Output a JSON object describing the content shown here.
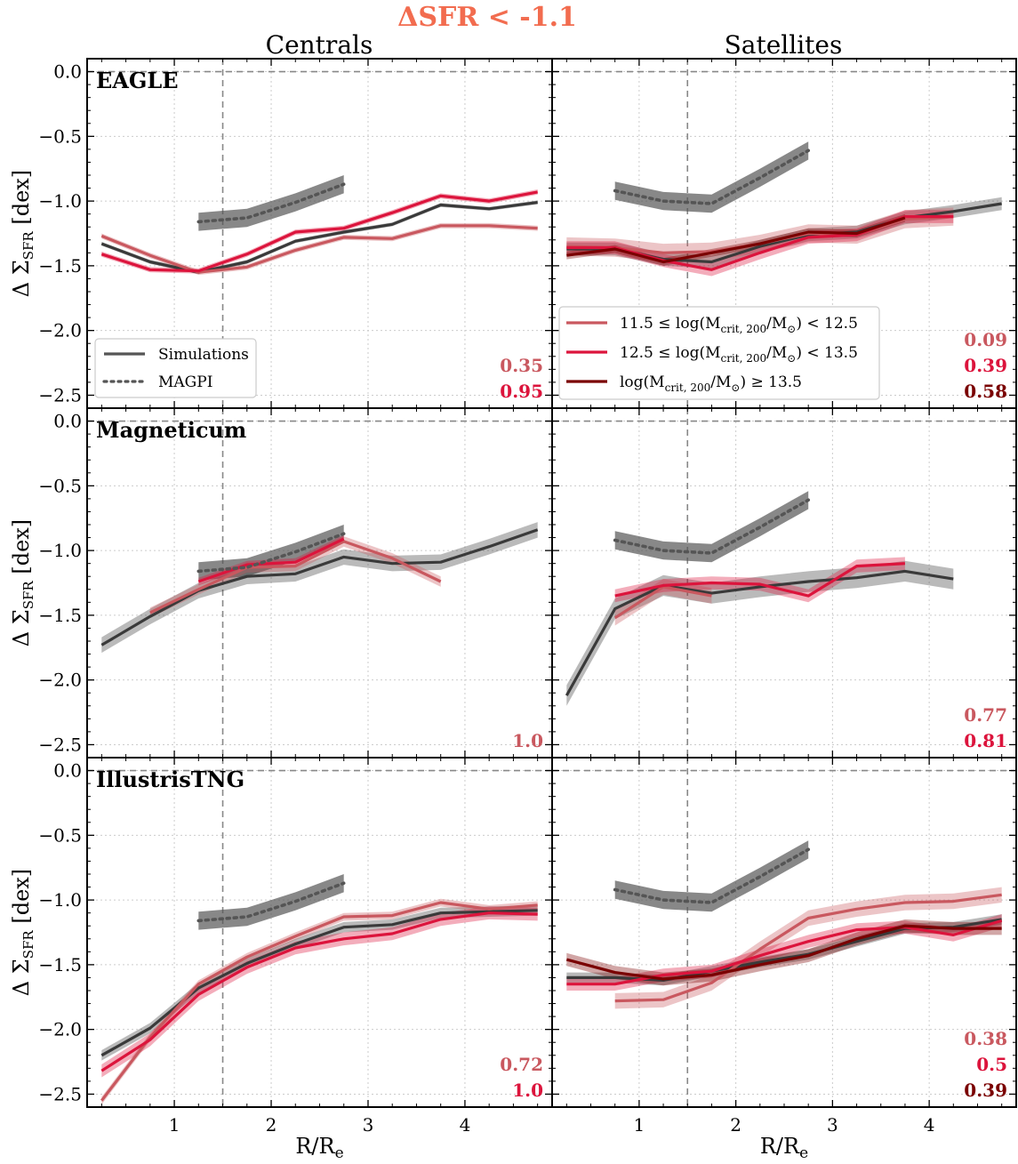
{
  "chart_data": {
    "type": "line",
    "title": "ΔSFR < -1.1",
    "title_color": "#f26c4f",
    "xlabel": "R/Re",
    "ylabel": "Δ ΣSFR [dex]",
    "xlim": [
      0.1,
      4.9
    ],
    "ylim": [
      -2.6,
      0.1
    ],
    "xticks": [
      1,
      2,
      3,
      4
    ],
    "yticks": [
      0.0,
      -0.5,
      -1.0,
      -1.5,
      -2.0,
      -2.5
    ],
    "reference_lines": {
      "vertical_x": 1.5,
      "horizontal_y": 0.0
    },
    "grid": true,
    "column_titles": [
      "Centrals",
      "Satellites"
    ],
    "row_labels": [
      "EAGLE",
      "Magneticum",
      "IllustrisTNG"
    ],
    "colors": {
      "simulations": "#3a3a3a",
      "magpi": "#555555",
      "bin_low": "#c9585f",
      "bin_mid": "#dc143c",
      "bin_high": "#7a0000"
    },
    "legend_styles": {
      "items": [
        {
          "label": "Simulations",
          "style": "solid"
        },
        {
          "label": "MAGPI",
          "style": "dotted"
        }
      ],
      "location": "lower-left of EAGLE centrals panel"
    },
    "legend_bins": {
      "items": [
        {
          "key": "bin_low",
          "label": "11.5 ≤ log(Mcrit, 200/M⊙) < 12.5"
        },
        {
          "key": "bin_mid",
          "label": "12.5 ≤ log(Mcrit, 200/M⊙) < 13.5"
        },
        {
          "key": "bin_high",
          "label": "log(Mcrit, 200/M⊙) ≥ 13.5"
        }
      ],
      "location": "lower-left of EAGLE satellites panel"
    },
    "panels": [
      {
        "row": 0,
        "col": 0,
        "sim_label": "EAGLE",
        "magpi": {
          "x": [
            1.25,
            1.75,
            2.25,
            2.75
          ],
          "y": [
            -1.16,
            -1.13,
            -1.01,
            -0.87
          ],
          "band": 0.07
        },
        "series": [
          {
            "name": "Simulations",
            "color_key": "simulations",
            "x": [
              0.25,
              0.75,
              1.25,
              1.75,
              2.25,
              2.75,
              3.25,
              3.75,
              4.25,
              4.75
            ],
            "y": [
              -1.33,
              -1.47,
              -1.55,
              -1.47,
              -1.31,
              -1.24,
              -1.18,
              -1.03,
              -1.06,
              -1.01
            ],
            "band": 0.015
          },
          {
            "name": "11.5 ≤ log(Mcrit, 200/M⊙) < 12.5",
            "color_key": "bin_low",
            "x": [
              0.25,
              0.75,
              1.25,
              1.75,
              2.25,
              2.75,
              3.25,
              3.75,
              4.25,
              4.75
            ],
            "y": [
              -1.27,
              -1.42,
              -1.55,
              -1.51,
              -1.38,
              -1.28,
              -1.29,
              -1.19,
              -1.19,
              -1.21
            ],
            "band": 0.02
          },
          {
            "name": "12.5 ≤ log(Mcrit, 200/M⊙) < 13.5",
            "color_key": "bin_mid",
            "x": [
              0.25,
              0.75,
              1.25,
              1.75,
              2.25,
              2.75,
              3.25,
              3.75,
              4.25,
              4.75
            ],
            "y": [
              -1.41,
              -1.53,
              -1.54,
              -1.41,
              -1.24,
              -1.21,
              -1.09,
              -0.96,
              -1.0,
              -0.93
            ],
            "band": 0.02
          }
        ],
        "stats": [
          {
            "text": "0.35",
            "color_key": "bin_low"
          },
          {
            "text": "0.95",
            "color_key": "bin_mid"
          }
        ]
      },
      {
        "row": 0,
        "col": 1,
        "sim_label": "",
        "magpi": {
          "x": [
            0.75,
            1.25,
            1.75,
            2.25,
            2.75
          ],
          "y": [
            -0.92,
            -1.0,
            -1.02,
            -0.82,
            -0.61
          ],
          "band": 0.07
        },
        "series": [
          {
            "name": "Simulations",
            "color_key": "simulations",
            "x": [
              0.25,
              0.75,
              1.25,
              1.75,
              2.25,
              2.75,
              3.25,
              3.75,
              4.25,
              4.75
            ],
            "y": [
              -1.37,
              -1.37,
              -1.45,
              -1.47,
              -1.35,
              -1.26,
              -1.24,
              -1.13,
              -1.08,
              -1.02
            ],
            "band": 0.05
          },
          {
            "name": "11.5 ≤ log(Mcrit, 200/M⊙) < 12.5",
            "color_key": "bin_low",
            "x": [
              0.25,
              0.75,
              1.25,
              1.75,
              2.25,
              2.75,
              3.25,
              3.75,
              4.25
            ],
            "y": [
              -1.35,
              -1.36,
              -1.4,
              -1.39,
              -1.33,
              -1.25,
              -1.26,
              -1.14,
              -1.12
            ],
            "band": 0.07
          },
          {
            "name": "12.5 ≤ log(Mcrit, 200/M⊙) < 13.5",
            "color_key": "bin_mid",
            "x": [
              0.25,
              0.75,
              1.25,
              1.75,
              2.25,
              2.75,
              3.25,
              3.75,
              4.25
            ],
            "y": [
              -1.36,
              -1.36,
              -1.46,
              -1.53,
              -1.4,
              -1.28,
              -1.26,
              -1.12,
              -1.12
            ],
            "band": 0.05
          },
          {
            "name": "log(Mcrit, 200/M⊙) ≥ 13.5",
            "color_key": "bin_high",
            "x": [
              0.25,
              0.75,
              1.25,
              1.75,
              2.25,
              2.75,
              3.25,
              3.75
            ],
            "y": [
              -1.42,
              -1.37,
              -1.47,
              -1.4,
              -1.33,
              -1.24,
              -1.25,
              -1.13
            ],
            "band": 0.03
          }
        ],
        "stats": [
          {
            "text": "0.09",
            "color_key": "bin_low"
          },
          {
            "text": "0.39",
            "color_key": "bin_mid"
          },
          {
            "text": "0.58",
            "color_key": "bin_high"
          }
        ]
      },
      {
        "row": 1,
        "col": 0,
        "sim_label": "Magneticum",
        "magpi": {
          "x": [
            1.25,
            1.75,
            2.25,
            2.75
          ],
          "y": [
            -1.16,
            -1.13,
            -1.01,
            -0.87
          ],
          "band": 0.07
        },
        "series": [
          {
            "name": "Simulations",
            "color_key": "simulations",
            "x": [
              0.25,
              0.75,
              1.25,
              1.75,
              2.25,
              2.75,
              3.25,
              3.75,
              4.25,
              4.75
            ],
            "y": [
              -1.73,
              -1.51,
              -1.31,
              -1.2,
              -1.18,
              -1.05,
              -1.1,
              -1.09,
              -0.97,
              -0.84
            ],
            "band": 0.06
          },
          {
            "name": "11.5 ≤ log(Mcrit, 200/M⊙) < 12.5",
            "color_key": "bin_low",
            "x": [
              0.75,
              1.25,
              1.75,
              2.25,
              2.75,
              3.25,
              3.75
            ],
            "y": [
              -1.48,
              -1.3,
              -1.13,
              -1.12,
              -0.93,
              -1.06,
              -1.24
            ],
            "band": 0.04
          },
          {
            "name": "12.5 ≤ log(Mcrit, 200/M⊙) < 13.5",
            "color_key": "bin_mid",
            "x": [
              1.25,
              1.75,
              2.25,
              2.75
            ],
            "y": [
              -1.24,
              -1.11,
              -1.09,
              -0.91
            ],
            "band": 0.03
          }
        ],
        "stats": [
          {
            "text": "1.0",
            "color_key": "bin_low"
          }
        ]
      },
      {
        "row": 1,
        "col": 1,
        "sim_label": "",
        "magpi": {
          "x": [
            0.75,
            1.25,
            1.75,
            2.25,
            2.75
          ],
          "y": [
            -0.92,
            -1.0,
            -1.02,
            -0.82,
            -0.61
          ],
          "band": 0.07
        },
        "series": [
          {
            "name": "Simulations",
            "color_key": "simulations",
            "x": [
              0.25,
              0.75,
              1.25,
              1.75,
              2.25,
              2.75,
              3.25,
              3.75,
              4.25
            ],
            "y": [
              -2.12,
              -1.45,
              -1.27,
              -1.33,
              -1.28,
              -1.24,
              -1.21,
              -1.16,
              -1.22
            ],
            "band": 0.08
          },
          {
            "name": "11.5 ≤ log(Mcrit, 200/M⊙) < 12.5",
            "color_key": "bin_low",
            "x": [
              0.75,
              1.25,
              1.75
            ],
            "y": [
              -1.52,
              -1.28,
              -1.35
            ],
            "band": 0.06
          },
          {
            "name": "12.5 ≤ log(Mcrit, 200/M⊙) < 13.5",
            "color_key": "bin_mid",
            "x": [
              0.75,
              1.25,
              1.75,
              2.25,
              2.75,
              3.25,
              3.75
            ],
            "y": [
              -1.35,
              -1.27,
              -1.25,
              -1.26,
              -1.35,
              -1.12,
              -1.1
            ],
            "band": 0.05
          }
        ],
        "stats": [
          {
            "text": "0.77",
            "color_key": "bin_low"
          },
          {
            "text": "0.81",
            "color_key": "bin_mid"
          }
        ]
      },
      {
        "row": 2,
        "col": 0,
        "sim_label": "IllustrisTNG",
        "magpi": {
          "x": [
            1.25,
            1.75,
            2.25,
            2.75
          ],
          "y": [
            -1.16,
            -1.13,
            -1.01,
            -0.87
          ],
          "band": 0.07
        },
        "series": [
          {
            "name": "Simulations",
            "color_key": "simulations",
            "x": [
              0.25,
              0.75,
              1.25,
              1.75,
              2.25,
              2.75,
              3.25,
              3.75,
              4.25,
              4.75
            ],
            "y": [
              -2.2,
              -1.99,
              -1.68,
              -1.49,
              -1.34,
              -1.21,
              -1.19,
              -1.1,
              -1.09,
              -1.08
            ],
            "band": 0.04
          },
          {
            "name": "11.5 ≤ log(Mcrit, 200/M⊙) < 12.5",
            "color_key": "bin_low",
            "x": [
              0.25,
              0.75,
              1.25,
              1.75,
              2.25,
              2.75,
              3.25,
              3.75,
              4.25,
              4.75
            ],
            "y": [
              -2.55,
              -2.06,
              -1.65,
              -1.44,
              -1.28,
              -1.13,
              -1.12,
              -1.02,
              -1.07,
              -1.04
            ],
            "band": 0.03
          },
          {
            "name": "12.5 ≤ log(Mcrit, 200/M⊙) < 13.5",
            "color_key": "bin_mid",
            "x": [
              0.25,
              0.75,
              1.25,
              1.75,
              2.25,
              2.75,
              3.25,
              3.75,
              4.25,
              4.75
            ],
            "y": [
              -2.32,
              -2.08,
              -1.73,
              -1.52,
              -1.37,
              -1.3,
              -1.26,
              -1.15,
              -1.1,
              -1.11
            ],
            "band": 0.05
          }
        ],
        "stats": [
          {
            "text": "0.72",
            "color_key": "bin_low"
          },
          {
            "text": "1.0",
            "color_key": "bin_mid"
          }
        ]
      },
      {
        "row": 2,
        "col": 1,
        "sim_label": "",
        "magpi": {
          "x": [
            0.75,
            1.25,
            1.75,
            2.25,
            2.75
          ],
          "y": [
            -0.92,
            -1.0,
            -1.02,
            -0.82,
            -0.61
          ],
          "band": 0.07
        },
        "series": [
          {
            "name": "Simulations",
            "color_key": "simulations",
            "x": [
              0.25,
              0.75,
              1.25,
              1.75,
              2.25,
              2.75,
              3.25,
              3.75,
              4.25,
              4.75
            ],
            "y": [
              -1.6,
              -1.6,
              -1.62,
              -1.55,
              -1.48,
              -1.42,
              -1.32,
              -1.22,
              -1.21,
              -1.15
            ],
            "band": 0.04
          },
          {
            "name": "11.5 ≤ log(Mcrit, 200/M⊙) < 12.5",
            "color_key": "bin_low",
            "x": [
              0.75,
              1.25,
              1.75,
              2.25,
              2.75,
              3.25,
              3.75,
              4.25,
              4.75
            ],
            "y": [
              -1.78,
              -1.77,
              -1.64,
              -1.38,
              -1.14,
              -1.07,
              -1.02,
              -1.01,
              -0.96
            ],
            "band": 0.06
          },
          {
            "name": "12.5 ≤ log(Mcrit, 200/M⊙) < 13.5",
            "color_key": "bin_mid",
            "x": [
              0.25,
              0.75,
              1.25,
              1.75,
              2.25,
              2.75,
              3.25,
              3.75,
              4.25,
              4.75
            ],
            "y": [
              -1.65,
              -1.65,
              -1.58,
              -1.55,
              -1.43,
              -1.32,
              -1.23,
              -1.21,
              -1.27,
              -1.16
            ],
            "band": 0.05
          },
          {
            "name": "log(Mcrit, 200/M⊙) ≥ 13.5",
            "color_key": "bin_high",
            "x": [
              0.25,
              0.75,
              1.25,
              1.75,
              2.25,
              2.75,
              3.25,
              3.75,
              4.25,
              4.75
            ],
            "y": [
              -1.46,
              -1.56,
              -1.61,
              -1.58,
              -1.5,
              -1.43,
              -1.3,
              -1.2,
              -1.22,
              -1.22
            ],
            "band": 0.05
          }
        ],
        "stats": [
          {
            "text": "0.38",
            "color_key": "bin_low"
          },
          {
            "text": "0.5",
            "color_key": "bin_mid"
          },
          {
            "text": "0.39",
            "color_key": "bin_high"
          }
        ]
      }
    ]
  }
}
